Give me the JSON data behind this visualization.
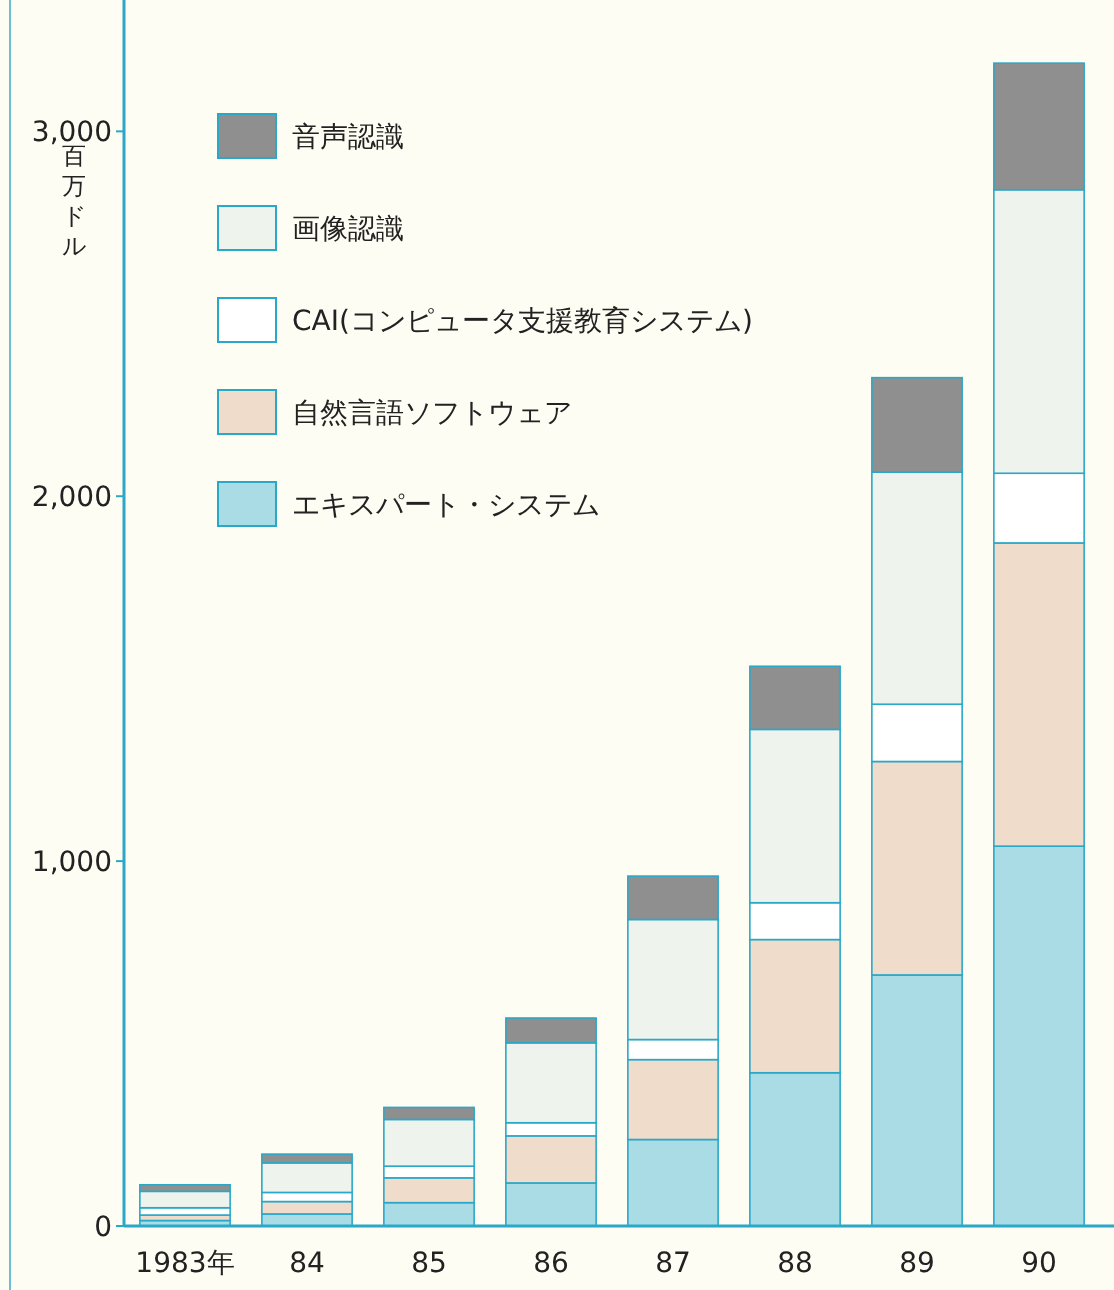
{
  "chart_data": {
    "type": "bar",
    "stacked": true,
    "ylabel": "百万ドル",
    "legend": "top left",
    "grid": false,
    "categories": [
      "1983年",
      "84",
      "85",
      "86",
      "87",
      "88",
      "89",
      "90"
    ],
    "ylim": [
      0,
      3360
    ],
    "yticks": [
      0,
      {
        "value": 1000,
        "label": "1,000"
      },
      {
        "value": 2000,
        "label": "2,000"
      },
      {
        "value": 3000,
        "label": "3,000"
      }
    ],
    "series": [
      {
        "name": "エキスパート・システム",
        "color": "#aadce6",
        "values": [
          15,
          33,
          64,
          118,
          237,
          420,
          688,
          1041
        ]
      },
      {
        "name": "自然言語ソフトウェア",
        "color": "#efdccb",
        "values": [
          15,
          34,
          68,
          129,
          219,
          365,
          585,
          831
        ]
      },
      {
        "name": "CAI(コンピュータ支援教育システム)",
        "color": "#ffffff",
        "values": [
          20,
          25,
          32,
          36,
          55,
          101,
          157,
          191
        ]
      },
      {
        "name": "画像認識",
        "color": "#eef3ee",
        "values": [
          45,
          81,
          128,
          219,
          329,
          475,
          636,
          777
        ]
      },
      {
        "name": "音声認識",
        "color": "#8f8f8f",
        "values": [
          18,
          24,
          33,
          68,
          119,
          173,
          259,
          347
        ]
      }
    ]
  }
}
